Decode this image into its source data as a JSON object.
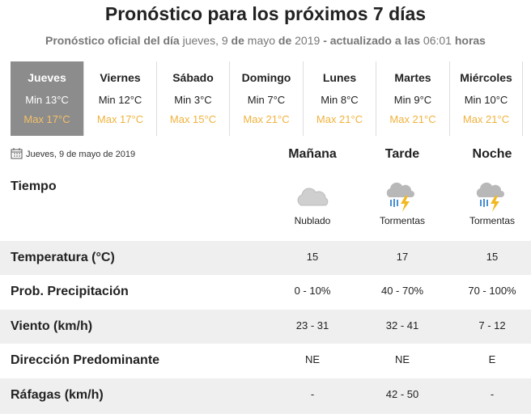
{
  "header": {
    "title": "Pronóstico para los próximos 7 días",
    "subtitle": [
      {
        "text": "Pronóstico oficial del día",
        "bold": true
      },
      {
        "text": "jueves, 9",
        "bold": false
      },
      {
        "text": "de",
        "bold": true
      },
      {
        "text": "mayo",
        "bold": false
      },
      {
        "text": "de",
        "bold": true
      },
      {
        "text": "2019",
        "bold": false
      },
      {
        "text": "- actualizado a las",
        "bold": true
      },
      {
        "text": "06:01",
        "bold": false
      },
      {
        "text": "horas",
        "bold": true
      }
    ]
  },
  "days": [
    {
      "name": "Jueves",
      "min": "Min 13°C",
      "max": "Max 17°C",
      "selected": true
    },
    {
      "name": "Viernes",
      "min": "Min 12°C",
      "max": "Max 17°C",
      "selected": false
    },
    {
      "name": "Sábado",
      "min": "Min 3°C",
      "max": "Max 15°C",
      "selected": false
    },
    {
      "name": "Domingo",
      "min": "Min 7°C",
      "max": "Max 21°C",
      "selected": false
    },
    {
      "name": "Lunes",
      "min": "Min 8°C",
      "max": "Max 21°C",
      "selected": false
    },
    {
      "name": "Martes",
      "min": "Min 9°C",
      "max": "Max 21°C",
      "selected": false
    },
    {
      "name": "Miércoles",
      "min": "Min 10°C",
      "max": "Max 21°C",
      "selected": false
    }
  ],
  "detail": {
    "date": "Jueves, 9 de mayo de 2019",
    "periods": [
      "Mañana",
      "Tarde",
      "Noche"
    ],
    "weather": {
      "label": "Tiempo",
      "conditions": [
        "Nublado",
        "Tormentas",
        "Tormentas"
      ]
    },
    "rows": [
      {
        "label": "Temperatura (°C)",
        "values": [
          15,
          17,
          15
        ]
      },
      {
        "label": "Prob. Precipitación",
        "values": [
          "0 - 10%",
          "40 - 70%",
          "70 - 100%"
        ]
      },
      {
        "label": "Viento (km/h)",
        "values": [
          "23 - 31",
          "32 - 41",
          "7 - 12"
        ]
      },
      {
        "label": "Dirección Predominante",
        "values": [
          "NE",
          "NE",
          "E"
        ]
      },
      {
        "label": "Ráfagas (km/h)",
        "values": [
          "-",
          "42 - 50",
          "-"
        ]
      }
    ]
  }
}
